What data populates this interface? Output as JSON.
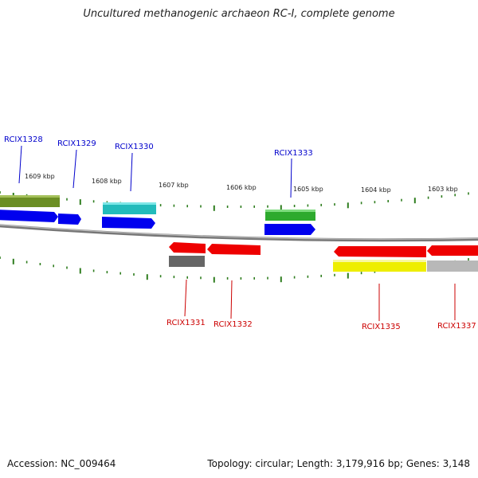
{
  "title": "Uncultured methanogenic archaeon RC-I, complete genome",
  "footer": {
    "accession": "Accession: NC_009464",
    "topology": "Topology: circular; Length: 3,179,916 bp; Genes: 3,148"
  },
  "scale_labels": [
    "1609 kbp",
    "1608 kbp",
    "1607 kbp",
    "1606 kbp",
    "1605 kbp",
    "1604 kbp",
    "1603 kbp"
  ],
  "genes": [
    {
      "id": "RCIX1328",
      "strand": "+",
      "color": "#0000ff"
    },
    {
      "id": "RCIX1329",
      "strand": "+",
      "color": "#0000ff"
    },
    {
      "id": "RCIX1330",
      "strand": "+",
      "color": "#0000ff"
    },
    {
      "id": "RCIX1331",
      "strand": "-",
      "color": "#cc0000"
    },
    {
      "id": "RCIX1332",
      "strand": "-",
      "color": "#cc0000"
    },
    {
      "id": "RCIX1333",
      "strand": "+",
      "color": "#0000ff"
    },
    {
      "id": "RCIX1335",
      "strand": "-",
      "color": "#cc0000"
    },
    {
      "id": "RCIX1337",
      "strand": "-",
      "color": "#cc0000"
    }
  ],
  "colors": {
    "forward_label": "#0000cc",
    "reverse_label": "#cc0000",
    "tick": "#2e7d1e",
    "backbone": "#888888"
  }
}
